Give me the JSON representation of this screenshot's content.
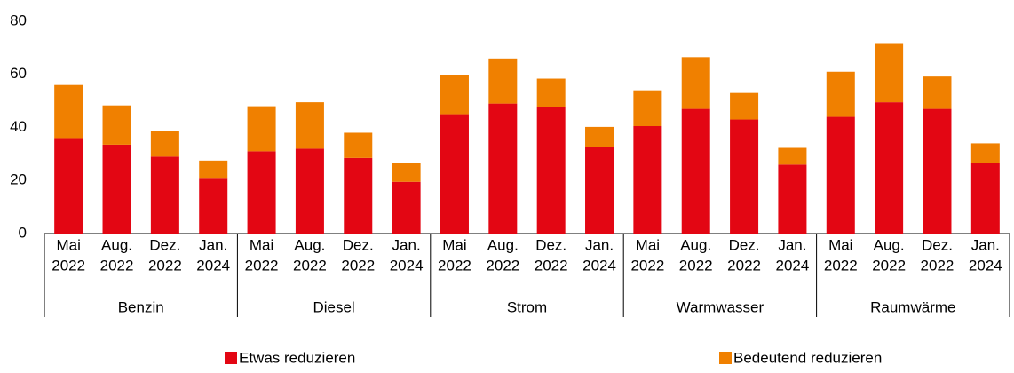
{
  "chart_data": {
    "type": "stacked_bar",
    "categories": [
      [
        "Mai",
        "2022"
      ],
      [
        "Aug.",
        "2022"
      ],
      [
        "Dez.",
        "2022"
      ],
      [
        "Jan.",
        "2024"
      ],
      [
        "Mai",
        "2022"
      ],
      [
        "Aug.",
        "2022"
      ],
      [
        "Dez.",
        "2022"
      ],
      [
        "Jan.",
        "2024"
      ],
      [
        "Mai",
        "2022"
      ],
      [
        "Aug.",
        "2022"
      ],
      [
        "Dez.",
        "2022"
      ],
      [
        "Jan.",
        "2024"
      ],
      [
        "Mai",
        "2022"
      ],
      [
        "Aug.",
        "2022"
      ],
      [
        "Dez.",
        "2022"
      ],
      [
        "Jan.",
        "2024"
      ],
      [
        "Mai",
        "2022"
      ],
      [
        "Aug.",
        "2022"
      ],
      [
        "Dez.",
        "2022"
      ],
      [
        "Jan.",
        "2024"
      ]
    ],
    "groups": [
      "Benzin",
      "Diesel",
      "Strom",
      "Warmwasser",
      "Raumwärme"
    ],
    "series": [
      {
        "name": "Etwas reduzieren",
        "color": "#e30613",
        "values": [
          36,
          33.5,
          29,
          21,
          31,
          32,
          28.5,
          19.5,
          45,
          49,
          47.6,
          32.6,
          40.5,
          47,
          43,
          26,
          44,
          49.5,
          47,
          26.5
        ]
      },
      {
        "name": "Bedeutend reduzieren",
        "color": "#f08000",
        "values": [
          20,
          14.8,
          9.7,
          6.5,
          17,
          17.5,
          9.5,
          7,
          14.6,
          17,
          10.8,
          7.6,
          13.5,
          19.5,
          10,
          6.3,
          17,
          22.3,
          12.2,
          7.5
        ]
      }
    ],
    "ylim": [
      0,
      80
    ],
    "yticks": [
      0,
      20,
      40,
      60,
      80
    ],
    "grid": false
  }
}
